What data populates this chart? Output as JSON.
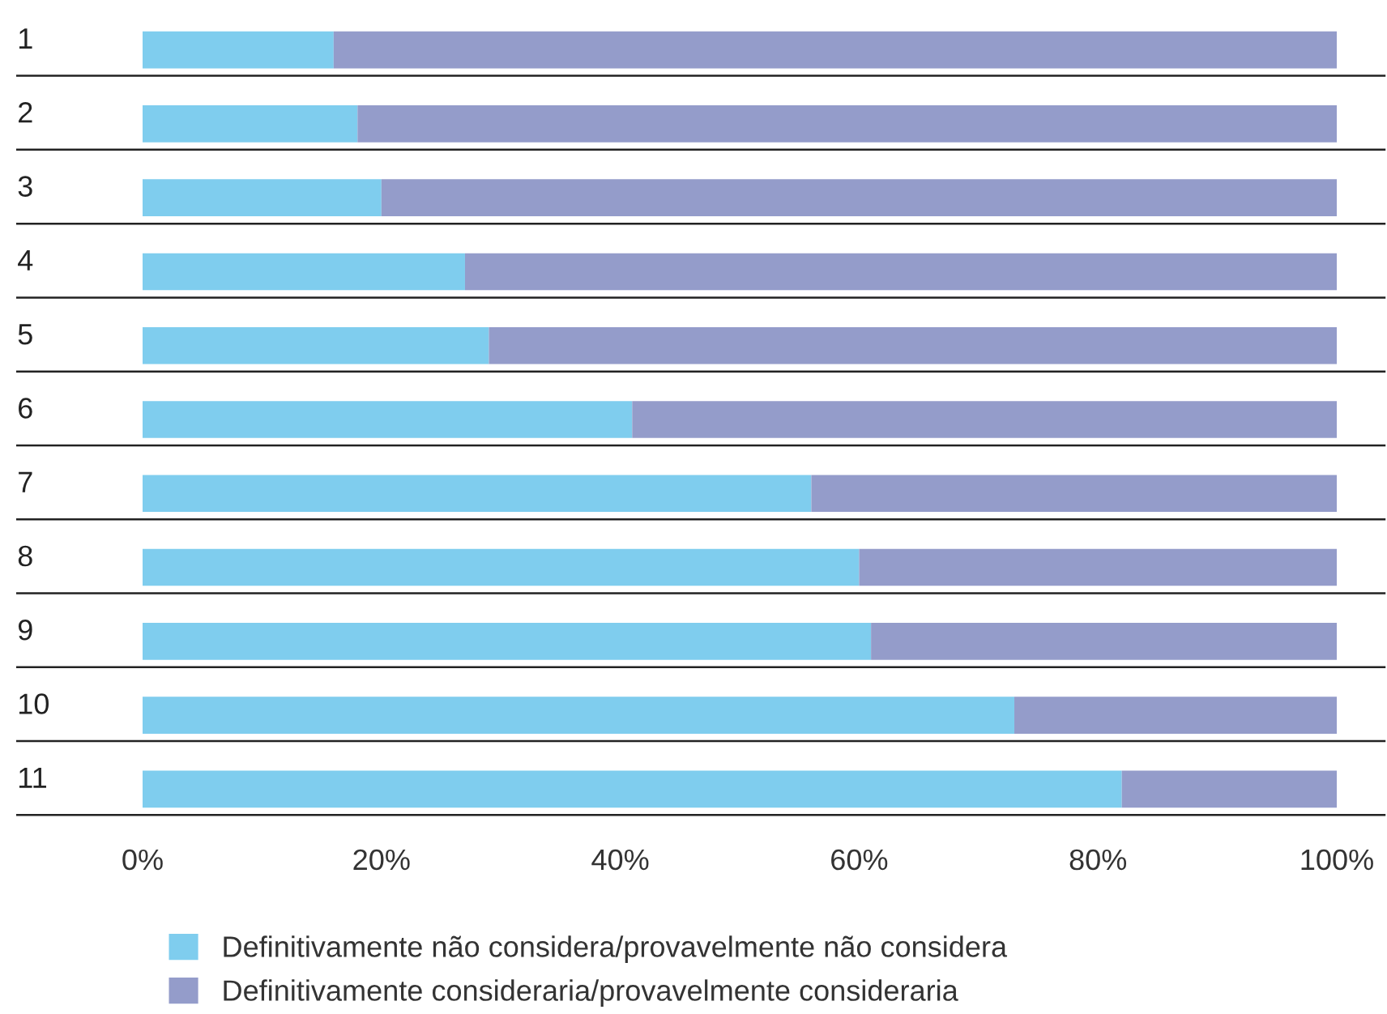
{
  "chart_data": {
    "type": "bar",
    "orientation": "horizontal",
    "stacked": true,
    "categories": [
      "1",
      "2",
      "3",
      "4",
      "5",
      "6",
      "7",
      "8",
      "9",
      "10",
      "11"
    ],
    "series": [
      {
        "name": "Definitivamente não considera/provavelmente não considera",
        "color": "#7fcdee",
        "values": [
          16,
          18,
          20,
          27,
          29,
          41,
          56,
          60,
          61,
          73,
          82
        ]
      },
      {
        "name": "Definitivamente consideraria/provavelmente consideraria",
        "color": "#949cca",
        "values": [
          84,
          82,
          80,
          73,
          71,
          59,
          44,
          40,
          39,
          27,
          18
        ]
      }
    ],
    "xlim": [
      0,
      100
    ],
    "xticks": [
      {
        "value": 0,
        "label": "0%"
      },
      {
        "value": 20,
        "label": "20%"
      },
      {
        "value": 40,
        "label": "40%"
      },
      {
        "value": 60,
        "label": "60%"
      },
      {
        "value": 80,
        "label": "80%"
      },
      {
        "value": 100,
        "label": "100%"
      }
    ],
    "legend": "bottom left"
  }
}
